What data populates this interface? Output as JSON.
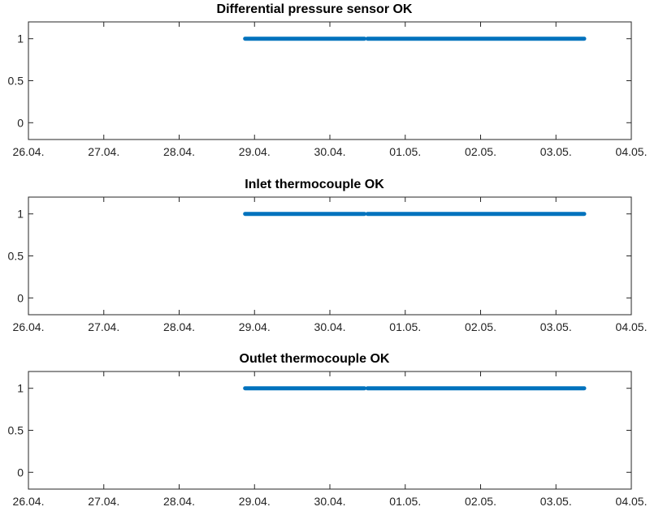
{
  "chart_data": [
    {
      "type": "line",
      "title": "Differential pressure sensor OK",
      "xlabel": "",
      "ylabel": "",
      "x_tick_labels": [
        "26.04.",
        "27.04.",
        "28.04.",
        "29.04.",
        "30.04.",
        "01.05.",
        "02.05.",
        "03.05.",
        "04.05."
      ],
      "y_tick_labels": [
        "1",
        "0.5",
        "0"
      ],
      "y_ticks": [
        1,
        0.5,
        0
      ],
      "xlim": [
        "26.04.",
        "04.05."
      ],
      "ylim": [
        -0.2,
        1.2
      ],
      "grid": false,
      "series": [
        {
          "segments": [
            {
              "x": [
                "28.04. 21:00",
                "30.04. 11:00"
              ],
              "y": [
                1,
                1
              ]
            },
            {
              "x": [
                "30.04. 12:00",
                "03.05. 09:00"
              ],
              "y": [
                1,
                1
              ]
            }
          ]
        }
      ],
      "color": "#0072BD"
    },
    {
      "type": "line",
      "title": "Inlet thermocouple OK",
      "xlabel": "",
      "ylabel": "",
      "x_tick_labels": [
        "26.04.",
        "27.04.",
        "28.04.",
        "29.04.",
        "30.04.",
        "01.05.",
        "02.05.",
        "03.05.",
        "04.05."
      ],
      "y_tick_labels": [
        "1",
        "0.5",
        "0"
      ],
      "y_ticks": [
        1,
        0.5,
        0
      ],
      "xlim": [
        "26.04.",
        "04.05."
      ],
      "ylim": [
        -0.2,
        1.2
      ],
      "grid": false,
      "series": [
        {
          "segments": [
            {
              "x": [
                "28.04. 21:00",
                "30.04. 11:00"
              ],
              "y": [
                1,
                1
              ]
            },
            {
              "x": [
                "30.04. 12:00",
                "03.05. 09:00"
              ],
              "y": [
                1,
                1
              ]
            }
          ]
        }
      ],
      "color": "#0072BD"
    },
    {
      "type": "line",
      "title": "Outlet thermocouple OK",
      "xlabel": "",
      "ylabel": "",
      "x_tick_labels": [
        "26.04.",
        "27.04.",
        "28.04.",
        "29.04.",
        "30.04.",
        "01.05.",
        "02.05.",
        "03.05.",
        "04.05."
      ],
      "y_tick_labels": [
        "1",
        "0.5",
        "0"
      ],
      "y_ticks": [
        1,
        0.5,
        0
      ],
      "xlim": [
        "26.04.",
        "04.05."
      ],
      "ylim": [
        -0.2,
        1.2
      ],
      "grid": false,
      "series": [
        {
          "segments": [
            {
              "x": [
                "28.04. 21:00",
                "30.04. 11:00"
              ],
              "y": [
                1,
                1
              ]
            },
            {
              "x": [
                "30.04. 12:00",
                "03.05. 09:00"
              ],
              "y": [
                1,
                1
              ]
            }
          ]
        }
      ],
      "color": "#0072BD"
    }
  ]
}
